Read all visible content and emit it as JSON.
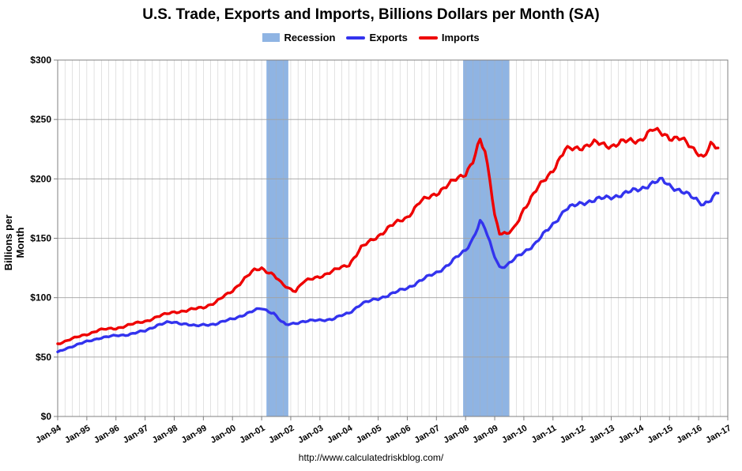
{
  "chart_data": {
    "type": "line",
    "title": "U.S. Trade, Exports and Imports, Billions Dollars per Month (SA)",
    "xlabel": "",
    "ylabel": "Billions per Month",
    "ylim": [
      0,
      300
    ],
    "yticks": [
      "$0",
      "$50",
      "$100",
      "$150",
      "$200",
      "$250",
      "$300"
    ],
    "ytick_values": [
      0,
      50,
      100,
      150,
      200,
      250,
      300
    ],
    "xlim": [
      "1994-01",
      "2017-01"
    ],
    "xticks": [
      "Jan-94",
      "Jan-95",
      "Jan-96",
      "Jan-97",
      "Jan-98",
      "Jan-99",
      "Jan-00",
      "Jan-01",
      "Jan-02",
      "Jan-03",
      "Jan-04",
      "Jan-05",
      "Jan-06",
      "Jan-07",
      "Jan-08",
      "Jan-09",
      "Jan-10",
      "Jan-11",
      "Jan-12",
      "Jan-13",
      "Jan-14",
      "Jan-15",
      "Jan-16",
      "Jan-17"
    ],
    "grid": true,
    "legend_position": "top-center",
    "recessions": [
      {
        "start": "2001-03",
        "end": "2001-11"
      },
      {
        "start": "2007-12",
        "end": "2009-06"
      }
    ],
    "series": [
      {
        "name": "Exports",
        "color": "#3333ee",
        "points": [
          [
            "1994-01",
            54
          ],
          [
            "1994-04",
            57
          ],
          [
            "1994-07",
            59
          ],
          [
            "1994-10",
            61
          ],
          [
            "1995-01",
            63
          ],
          [
            "1995-06",
            66
          ],
          [
            "1996-01",
            68
          ],
          [
            "1996-06",
            69
          ],
          [
            "1997-01",
            72
          ],
          [
            "1997-06",
            77
          ],
          [
            "1997-10",
            79
          ],
          [
            "1998-01",
            79
          ],
          [
            "1998-06",
            78
          ],
          [
            "1998-10",
            76
          ],
          [
            "1999-01",
            77
          ],
          [
            "1999-06",
            78
          ],
          [
            "2000-01",
            82
          ],
          [
            "2000-06",
            86
          ],
          [
            "2000-10",
            89
          ],
          [
            "2001-01",
            91
          ],
          [
            "2001-06",
            87
          ],
          [
            "2001-09",
            80
          ],
          [
            "2001-11",
            77
          ],
          [
            "2002-06",
            80
          ],
          [
            "2003-01",
            81
          ],
          [
            "2003-06",
            82
          ],
          [
            "2004-01",
            87
          ],
          [
            "2004-06",
            95
          ],
          [
            "2005-01",
            99
          ],
          [
            "2005-06",
            103
          ],
          [
            "2006-01",
            108
          ],
          [
            "2006-06",
            114
          ],
          [
            "2007-01",
            121
          ],
          [
            "2007-06",
            128
          ],
          [
            "2008-01",
            140
          ],
          [
            "2008-04",
            150
          ],
          [
            "2008-07",
            164
          ],
          [
            "2008-09",
            158
          ],
          [
            "2008-12",
            140
          ],
          [
            "2009-03",
            126
          ],
          [
            "2009-06",
            127
          ],
          [
            "2009-12",
            137
          ],
          [
            "2010-06",
            146
          ],
          [
            "2011-01",
            162
          ],
          [
            "2011-06",
            174
          ],
          [
            "2012-01",
            180
          ],
          [
            "2012-06",
            182
          ],
          [
            "2013-01",
            185
          ],
          [
            "2013-06",
            187
          ],
          [
            "2014-01",
            192
          ],
          [
            "2014-06",
            196
          ],
          [
            "2014-10",
            199
          ],
          [
            "2015-01",
            195
          ],
          [
            "2015-06",
            189
          ],
          [
            "2015-12",
            183
          ],
          [
            "2016-03",
            179
          ],
          [
            "2016-06",
            182
          ],
          [
            "2016-09",
            188
          ]
        ]
      },
      {
        "name": "Imports",
        "color": "#ee0000",
        "points": [
          [
            "1994-01",
            61
          ],
          [
            "1994-06",
            65
          ],
          [
            "1995-01",
            69
          ],
          [
            "1995-06",
            73
          ],
          [
            "1996-01",
            74
          ],
          [
            "1996-06",
            77
          ],
          [
            "1997-01",
            80
          ],
          [
            "1997-06",
            84
          ],
          [
            "1998-01",
            88
          ],
          [
            "1998-06",
            89
          ],
          [
            "1999-01",
            92
          ],
          [
            "1999-06",
            96
          ],
          [
            "2000-01",
            106
          ],
          [
            "2000-06",
            116
          ],
          [
            "2000-10",
            123
          ],
          [
            "2001-01",
            125
          ],
          [
            "2001-06",
            119
          ],
          [
            "2001-09",
            112
          ],
          [
            "2001-12",
            108
          ],
          [
            "2002-03",
            106
          ],
          [
            "2002-06",
            113
          ],
          [
            "2003-01",
            118
          ],
          [
            "2003-06",
            122
          ],
          [
            "2004-01",
            128
          ],
          [
            "2004-06",
            142
          ],
          [
            "2005-01",
            152
          ],
          [
            "2005-06",
            160
          ],
          [
            "2006-01",
            168
          ],
          [
            "2006-06",
            180
          ],
          [
            "2007-01",
            188
          ],
          [
            "2007-06",
            195
          ],
          [
            "2008-01",
            205
          ],
          [
            "2008-04",
            215
          ],
          [
            "2008-07",
            232
          ],
          [
            "2008-09",
            222
          ],
          [
            "2008-11",
            200
          ],
          [
            "2009-01",
            170
          ],
          [
            "2009-03",
            155
          ],
          [
            "2009-06",
            153
          ],
          [
            "2009-09",
            158
          ],
          [
            "2010-01",
            175
          ],
          [
            "2010-06",
            190
          ],
          [
            "2011-01",
            208
          ],
          [
            "2011-06",
            224
          ],
          [
            "2012-01",
            227
          ],
          [
            "2012-06",
            230
          ],
          [
            "2013-01",
            228
          ],
          [
            "2013-06",
            231
          ],
          [
            "2014-01",
            233
          ],
          [
            "2014-06",
            241
          ],
          [
            "2014-11",
            238
          ],
          [
            "2015-01",
            235
          ],
          [
            "2015-06",
            233
          ],
          [
            "2015-12",
            224
          ],
          [
            "2016-03",
            218
          ],
          [
            "2016-06",
            228
          ],
          [
            "2016-09",
            226
          ]
        ]
      }
    ]
  },
  "legend": {
    "recession_label": "Recession",
    "exports_label": "Exports",
    "imports_label": "Imports"
  },
  "colors": {
    "recession": "#8fb4e3",
    "exports": "#3333ee",
    "imports": "#ee0000",
    "grid": "#b0b0b0"
  },
  "source": "http://www.calculatedriskblog.com/"
}
